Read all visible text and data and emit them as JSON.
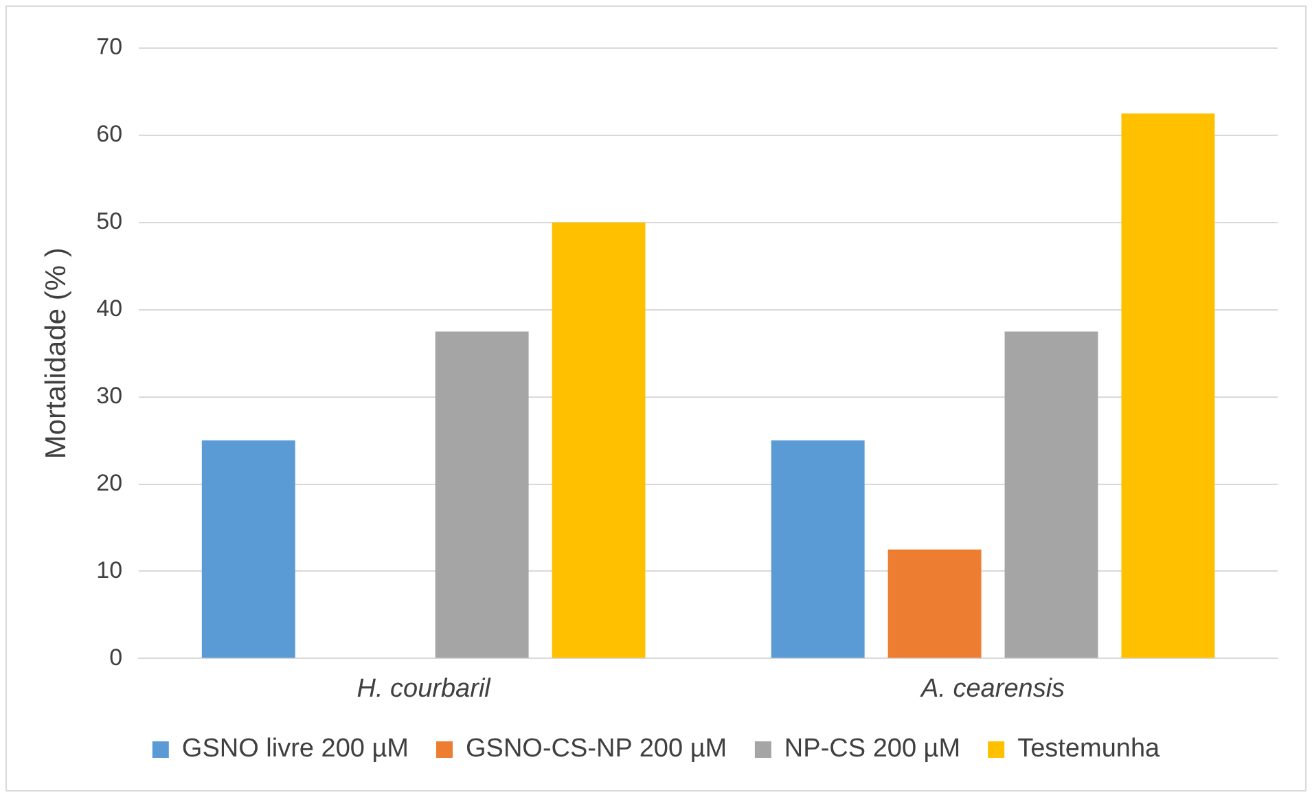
{
  "chart_data": {
    "type": "bar",
    "ylabel": "Mortalidade (% )",
    "categories": [
      "H. courbaril",
      "A. cearensis"
    ],
    "series": [
      {
        "name": "GSNO livre 200 µM",
        "color": "#5b9bd5",
        "values": [
          25,
          25
        ]
      },
      {
        "name": "GSNO-CS-NP 200 µM",
        "color": "#ed7d31",
        "values": [
          0,
          12.5
        ]
      },
      {
        "name": "NP-CS 200 µM",
        "color": "#a5a5a5",
        "values": [
          37.5,
          37.5
        ]
      },
      {
        "name": "Testemunha",
        "color": "#ffc000",
        "values": [
          50,
          62.5
        ]
      }
    ],
    "ylim": [
      0,
      70
    ],
    "yticks": [
      0,
      10,
      20,
      30,
      40,
      50,
      60,
      70
    ],
    "grid": "y",
    "legend": "bottom"
  }
}
